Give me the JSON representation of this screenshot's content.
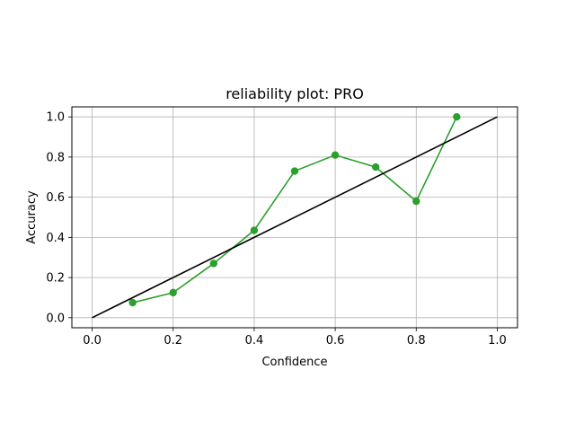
{
  "chart_data": {
    "type": "line",
    "title": "reliability plot: PRO",
    "xlabel": "Confidence",
    "ylabel": "Accuracy",
    "xlim": [
      -0.05,
      1.05
    ],
    "ylim": [
      -0.05,
      1.05
    ],
    "xticks": [
      "0.0",
      "0.2",
      "0.4",
      "0.6",
      "0.8",
      "1.0"
    ],
    "yticks": [
      "0.0",
      "0.2",
      "0.4",
      "0.6",
      "0.8",
      "1.0"
    ],
    "grid": true,
    "series": [
      {
        "x": [
          0.1,
          0.2,
          0.3,
          0.4,
          0.5,
          0.6,
          0.7,
          0.8,
          0.9
        ],
        "y": [
          0.075,
          0.125,
          0.27,
          0.435,
          0.73,
          0.81,
          0.75,
          0.58,
          1.0
        ],
        "color": "#2ca02c",
        "marker": "circle"
      },
      {
        "x": [
          0.0,
          1.0
        ],
        "y": [
          0.0,
          1.0
        ],
        "color": "#000000",
        "marker": "none"
      }
    ]
  }
}
